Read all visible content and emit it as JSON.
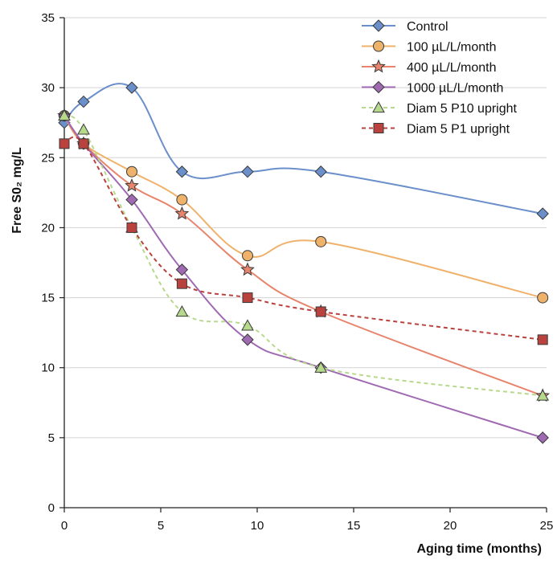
{
  "chart_data": {
    "type": "line",
    "xlabel": "Aging time (months)",
    "ylabel": "Free S0₂ mg/L",
    "xlim": [
      0,
      25
    ],
    "ylim": [
      0,
      35
    ],
    "xticks": [
      "0",
      "5",
      "10",
      "15",
      "20",
      "25"
    ],
    "yticks": [
      "0",
      "5",
      "10",
      "15",
      "20",
      "25",
      "30",
      "35"
    ],
    "grid": "horizontal",
    "legend_position": "top-right",
    "series": [
      {
        "name": "Control",
        "color": "#6a8fca",
        "marker": "diamond",
        "dash": false,
        "x": [
          0,
          1,
          3.5,
          6.1,
          9.5,
          13.3,
          24.8
        ],
        "y": [
          27.5,
          29,
          30,
          24,
          24,
          24,
          21
        ]
      },
      {
        "name": "100 µL/L/month",
        "color": "#efb26a",
        "marker": "circle",
        "dash": false,
        "x": [
          0,
          1,
          3.5,
          6.1,
          9.5,
          13.3,
          24.8
        ],
        "y": [
          28,
          26,
          24,
          22,
          18,
          19,
          15
        ]
      },
      {
        "name": "400 µL/L/month",
        "color": "#e8846b",
        "marker": "star",
        "dash": false,
        "x": [
          0,
          1,
          3.5,
          6.1,
          9.5,
          13.3,
          24.8
        ],
        "y": [
          28,
          26,
          23,
          21,
          17,
          14,
          8
        ]
      },
      {
        "name": "1000 µL/L/month",
        "color": "#a06ab2",
        "marker": "diamond",
        "dash": false,
        "x": [
          0,
          1,
          3.5,
          6.1,
          9.5,
          13.3,
          24.8
        ],
        "y": [
          28,
          26,
          22,
          17,
          12,
          10,
          5
        ]
      },
      {
        "name": "Diam 5 P10 upright",
        "color": "#b6d98c",
        "marker": "triangle",
        "dash": true,
        "x": [
          0,
          1,
          3.5,
          6.1,
          9.5,
          13.3,
          24.8
        ],
        "y": [
          28,
          27,
          20,
          14,
          13,
          10,
          8
        ]
      },
      {
        "name": "Diam 5 P1 upright",
        "color": "#b9413e",
        "marker": "square",
        "dash": true,
        "x": [
          0,
          1,
          3.5,
          6.1,
          9.5,
          13.3,
          24.8
        ],
        "y": [
          26,
          26,
          20,
          16,
          15,
          14,
          12
        ]
      }
    ]
  }
}
